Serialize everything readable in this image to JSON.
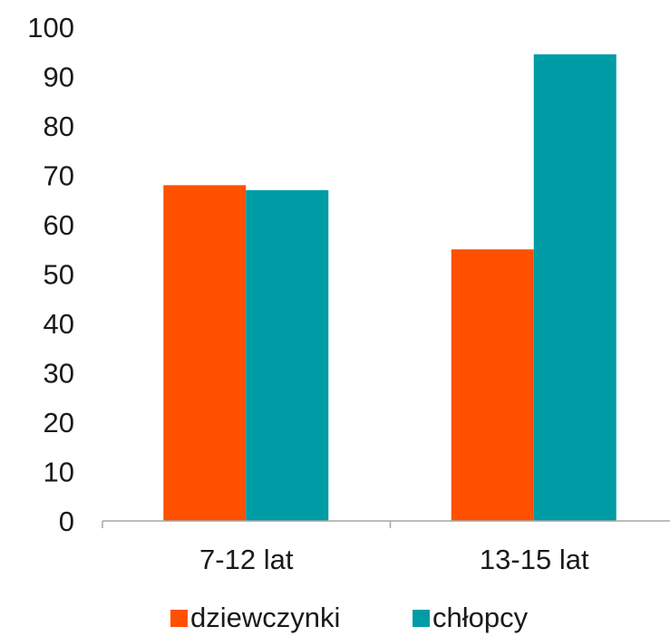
{
  "chart_data": {
    "type": "bar",
    "categories": [
      "7-12 lat",
      "13-15 lat"
    ],
    "series": [
      {
        "name": "dziewczynki",
        "color": "#ff5000",
        "values": [
          68,
          55
        ]
      },
      {
        "name": "chłopcy",
        "color": "#009ca6",
        "values": [
          67,
          94.5
        ]
      }
    ],
    "ylim": [
      0,
      100
    ],
    "yticks": [
      "0",
      "10",
      "20",
      "30",
      "40",
      "50",
      "60",
      "70",
      "80",
      "90",
      "100"
    ],
    "grid": false,
    "legend_position": "bottom",
    "axis_color": "#a6a6a6"
  }
}
